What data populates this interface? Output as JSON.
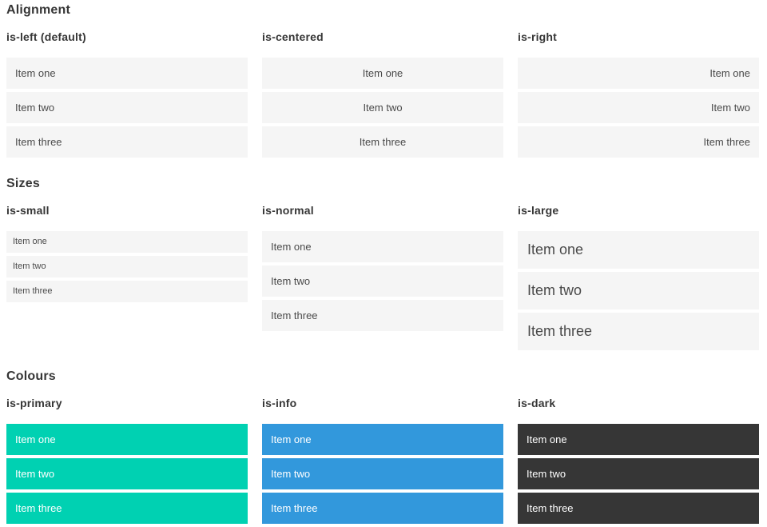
{
  "sections": [
    {
      "title": "Alignment",
      "groups": [
        {
          "label": "is-left (default)",
          "variant": "left",
          "items": [
            "Item one",
            "Item two",
            "Item three"
          ]
        },
        {
          "label": "is-centered",
          "variant": "centered",
          "items": [
            "Item one",
            "Item two",
            "Item three"
          ]
        },
        {
          "label": "is-right",
          "variant": "right",
          "items": [
            "Item one",
            "Item two",
            "Item three"
          ]
        }
      ]
    },
    {
      "title": "Sizes",
      "groups": [
        {
          "label": "is-small",
          "variant": "small",
          "items": [
            "Item one",
            "Item two",
            "Item three"
          ]
        },
        {
          "label": "is-normal",
          "variant": "normal",
          "items": [
            "Item one",
            "Item two",
            "Item three"
          ]
        },
        {
          "label": "is-large",
          "variant": "large",
          "items": [
            "Item one",
            "Item two",
            "Item three"
          ]
        }
      ]
    },
    {
      "title": "Colours",
      "groups": [
        {
          "label": "is-primary",
          "variant": "primary",
          "items": [
            "Item one",
            "Item two",
            "Item three"
          ]
        },
        {
          "label": "is-info",
          "variant": "info",
          "items": [
            "Item one",
            "Item two",
            "Item three"
          ]
        },
        {
          "label": "is-dark",
          "variant": "dark",
          "items": [
            "Item one",
            "Item two",
            "Item three"
          ]
        }
      ]
    }
  ],
  "colors": {
    "primary": "#00d1b2",
    "info": "#3298dc",
    "dark": "#363636",
    "item-bg": "#f5f5f5",
    "item-text": "#4a4a4a",
    "heading-text": "#363636",
    "on-color-text": "#ffffff"
  }
}
